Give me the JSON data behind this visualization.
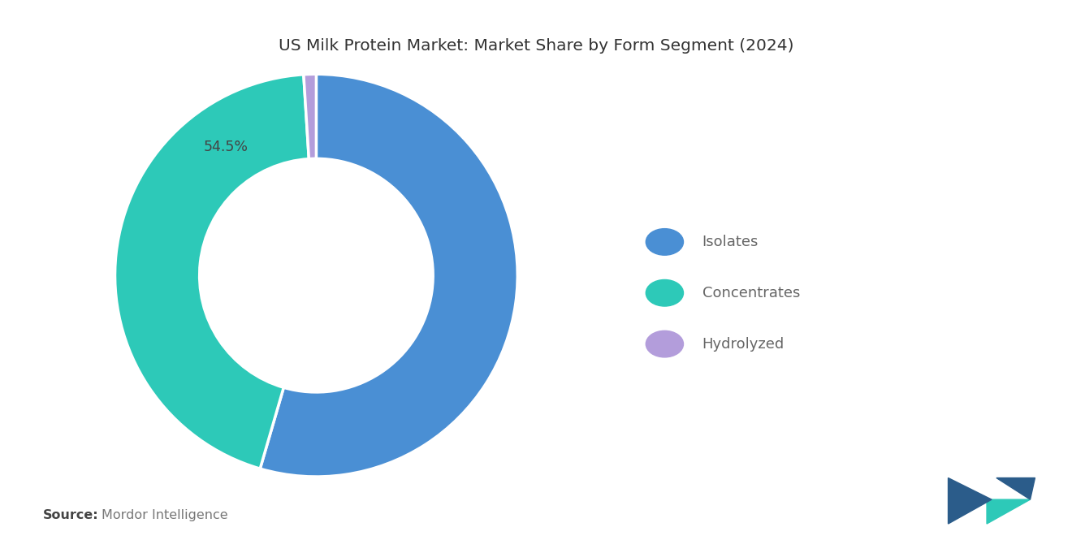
{
  "title": "US Milk Protein Market: Market Share by Form Segment (2024)",
  "segments": [
    "Isolates",
    "Concentrates",
    "Hydrolyzed"
  ],
  "values": [
    54.5,
    44.5,
    1.0
  ],
  "colors": [
    "#4A8FD4",
    "#2DC9B8",
    "#B39DDB"
  ],
  "label_text": "54.5%",
  "source_bold": "Source:",
  "source_text": "Mordor Intelligence",
  "background_color": "#ffffff",
  "title_fontsize": 14.5,
  "legend_fontsize": 13,
  "source_fontsize": 11.5,
  "donut_width": 0.42
}
